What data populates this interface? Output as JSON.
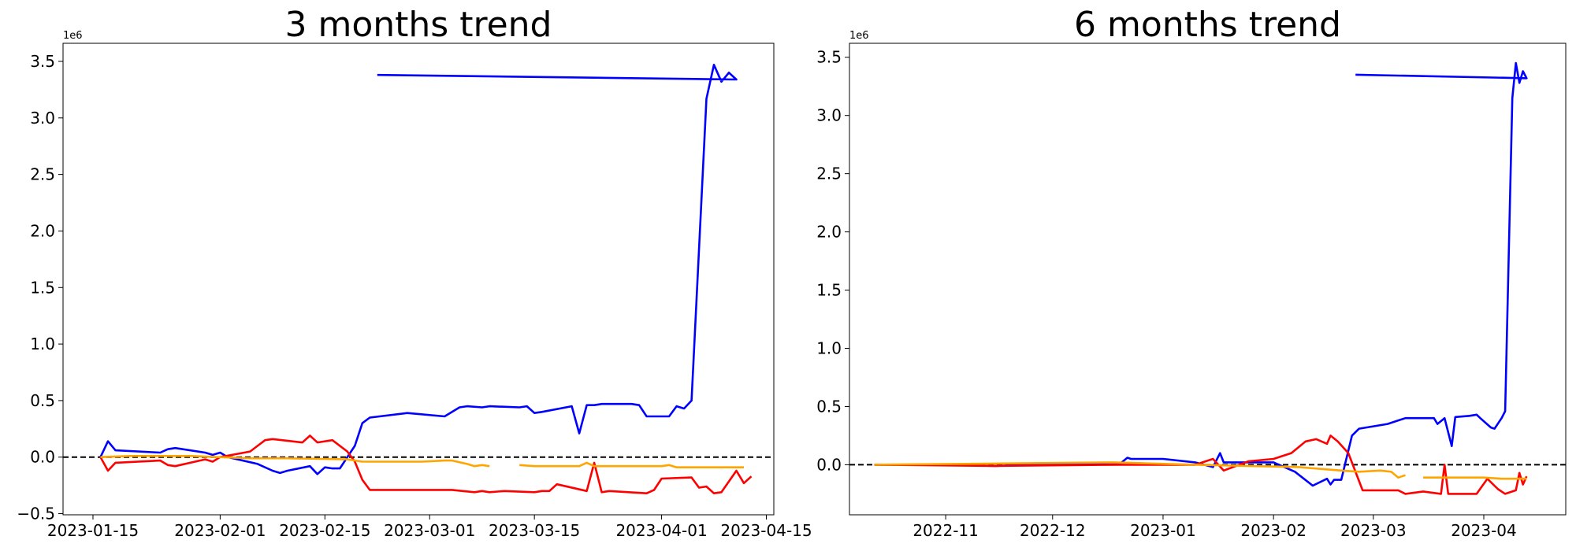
{
  "chart_data": [
    {
      "type": "line",
      "title": "3 months trend",
      "offset_label": "1e6",
      "xlim": [
        "2023-01-11",
        "2023-04-16"
      ],
      "xticks": [
        "2023-01-15",
        "2023-02-01",
        "2023-02-15",
        "2023-03-01",
        "2023-03-15",
        "2023-04-01",
        "2023-04-15"
      ],
      "ylim": [
        -0.51,
        3.66
      ],
      "yticks": [
        {
          "value": -0.5,
          "label": "−0.5"
        },
        {
          "value": 0,
          "label": "0.0"
        },
        0.5,
        {
          "value": 1,
          "label": "1.0"
        },
        1.5,
        {
          "value": 2,
          "label": "2.0"
        },
        2.5,
        {
          "value": 3,
          "label": "3.0"
        },
        3.5
      ],
      "hline": 0,
      "series": [
        {
          "color": "#0000ff",
          "x": [
            "2023-01-16",
            "2023-01-17",
            "2023-01-18",
            "2023-01-24",
            "2023-01-25",
            "2023-01-26",
            "2023-01-30",
            "2023-01-31",
            "2023-02-01",
            "2023-02-02",
            "2023-02-06",
            "2023-02-08",
            "2023-02-09",
            "2023-02-10",
            "2023-02-13",
            "2023-02-14",
            "2023-02-15",
            "2023-02-16",
            "2023-02-17",
            "2023-02-19",
            "2023-02-20",
            "2023-02-21",
            "2023-02-26",
            "2023-03-03",
            "2023-03-05",
            "2023-03-06",
            "2023-03-08",
            "2023-03-09",
            "2023-03-13",
            "2023-03-14",
            "2023-03-15",
            "2023-03-16",
            "2023-03-20",
            "2023-03-21",
            "2023-03-22",
            "2023-03-23",
            "2023-03-24",
            "2023-03-28",
            "2023-03-29",
            "2023-03-30",
            "2023-04-02",
            "2023-04-03",
            "2023-04-04",
            "2023-04-05",
            "2023-04-07",
            "2023-04-08",
            "2023-04-09",
            "2023-04-10",
            "2023-04-11",
            "2023-02-22"
          ],
          "values": [
            0.0,
            0.14,
            0.06,
            0.04,
            0.07,
            0.08,
            0.04,
            0.02,
            0.04,
            0.0,
            -0.06,
            -0.12,
            -0.14,
            -0.12,
            -0.08,
            -0.15,
            -0.09,
            -0.1,
            -0.1,
            0.1,
            0.3,
            0.35,
            0.39,
            0.36,
            0.44,
            0.45,
            0.44,
            0.45,
            0.44,
            0.45,
            0.39,
            0.4,
            0.45,
            0.21,
            0.46,
            0.46,
            0.47,
            0.47,
            0.46,
            0.36,
            0.36,
            0.45,
            0.43,
            0.5,
            3.17,
            3.47,
            3.32,
            3.4,
            3.34,
            3.38
          ]
        },
        {
          "color": "#ff0000",
          "x": [
            "2023-01-16",
            "2023-01-17",
            "2023-01-18",
            "2023-01-24",
            "2023-01-25",
            "2023-01-26",
            "2023-01-30",
            "2023-01-31",
            "2023-02-01",
            "2023-02-05",
            "2023-02-06",
            "2023-02-07",
            "2023-02-08",
            "2023-02-12",
            "2023-02-13",
            "2023-02-14",
            "2023-02-16",
            "2023-02-18",
            "2023-02-19",
            "2023-02-20",
            "2023-02-21",
            "2023-03-04",
            "2023-03-07",
            "2023-03-08",
            "2023-03-09",
            "2023-03-11",
            "2023-03-15",
            "2023-03-16",
            "2023-03-17",
            "2023-03-18",
            "2023-03-22",
            "2023-03-23",
            "2023-03-24",
            "2023-03-25",
            "2023-03-30",
            "2023-03-31",
            "2023-04-01",
            "2023-04-05",
            "2023-04-06",
            "2023-04-07",
            "2023-04-08",
            "2023-04-09",
            "2023-04-11",
            "2023-04-12",
            "2023-04-13"
          ],
          "values": [
            0.0,
            -0.12,
            -0.05,
            -0.03,
            -0.07,
            -0.08,
            -0.02,
            -0.04,
            0.0,
            0.05,
            0.1,
            0.15,
            0.16,
            0.13,
            0.19,
            0.13,
            0.15,
            0.05,
            -0.04,
            -0.2,
            -0.29,
            -0.29,
            -0.31,
            -0.3,
            -0.31,
            -0.3,
            -0.31,
            -0.3,
            -0.3,
            -0.24,
            -0.3,
            -0.05,
            -0.31,
            -0.3,
            -0.32,
            -0.29,
            -0.19,
            -0.18,
            -0.27,
            -0.26,
            -0.32,
            -0.31,
            -0.12,
            -0.23,
            -0.17
          ]
        },
        {
          "color": "#ffa500",
          "x": [
            "2023-01-16",
            "2023-01-20",
            "2023-01-28",
            "2023-02-05",
            "2023-02-10",
            "2023-02-18",
            "2023-02-20",
            "2023-02-28",
            "2023-03-03",
            "2023-03-04",
            "2023-03-06",
            "2023-03-07",
            "2023-03-08",
            "2023-03-09",
            "2023-03-11",
            "2023-03-13",
            "2023-03-15",
            "2023-03-21",
            "2023-03-22",
            "2023-03-23",
            "2023-04-01",
            "2023-04-02",
            "2023-04-03",
            "2023-04-12"
          ],
          "values": [
            0.0,
            0.01,
            0.01,
            -0.01,
            -0.01,
            -0.02,
            -0.04,
            -0.04,
            -0.03,
            -0.03,
            -0.06,
            -0.08,
            -0.07,
            -0.08,
            null,
            -0.07,
            -0.08,
            -0.08,
            -0.05,
            -0.08,
            -0.08,
            -0.07,
            -0.09,
            -0.09
          ]
        }
      ]
    },
    {
      "type": "line",
      "title": "6 months trend",
      "offset_label": "1e6",
      "xlim": [
        "2022-10-05",
        "2023-04-24"
      ],
      "xticks": [
        {
          "value": "2022-11-01",
          "label": "2022-11"
        },
        {
          "value": "2022-12-01",
          "label": "2022-12"
        },
        {
          "value": "2023-01-01",
          "label": "2023-01"
        },
        {
          "value": "2023-02-01",
          "label": "2023-02"
        },
        {
          "value": "2023-03-01",
          "label": "2023-03"
        },
        {
          "value": "2023-04-01",
          "label": "2023-04"
        }
      ],
      "ylim": [
        -0.43,
        3.62
      ],
      "yticks": [
        {
          "value": 0,
          "label": "0.0"
        },
        0.5,
        {
          "value": 1,
          "label": "1.0"
        },
        1.5,
        {
          "value": 2,
          "label": "2.0"
        },
        2.5,
        {
          "value": 3,
          "label": "3.0"
        },
        3.5
      ],
      "hline": 0,
      "series": [
        {
          "color": "#0000ff",
          "x": [
            "2022-10-12",
            "2022-11-01",
            "2022-11-15",
            "2022-12-01",
            "2022-12-20",
            "2022-12-22",
            "2022-12-23",
            "2023-01-01",
            "2023-01-10",
            "2023-01-15",
            "2023-01-17",
            "2023-01-18",
            "2023-01-25",
            "2023-02-01",
            "2023-02-07",
            "2023-02-12",
            "2023-02-16",
            "2023-02-17",
            "2023-02-18",
            "2023-02-20",
            "2023-02-23",
            "2023-02-25",
            "2023-03-05",
            "2023-03-10",
            "2023-03-14",
            "2023-03-18",
            "2023-03-19",
            "2023-03-21",
            "2023-03-23",
            "2023-03-24",
            "2023-03-28",
            "2023-03-30",
            "2023-03-31",
            "2023-04-03",
            "2023-04-04",
            "2023-04-06",
            "2023-04-07",
            "2023-04-09",
            "2023-04-10",
            "2023-04-11",
            "2023-04-12",
            "2023-04-13",
            "2023-02-24"
          ],
          "values": [
            0.0,
            0.0,
            -0.01,
            0.01,
            0.01,
            0.06,
            0.05,
            0.05,
            0.02,
            -0.02,
            0.1,
            0.02,
            0.02,
            0.02,
            -0.06,
            -0.18,
            -0.12,
            -0.17,
            -0.13,
            -0.13,
            0.25,
            0.31,
            0.35,
            0.4,
            0.4,
            0.4,
            0.35,
            0.4,
            0.16,
            0.41,
            0.42,
            0.43,
            0.4,
            0.32,
            0.31,
            0.4,
            0.46,
            3.15,
            3.45,
            3.28,
            3.38,
            3.32,
            3.35
          ]
        },
        {
          "color": "#ff0000",
          "x": [
            "2022-10-12",
            "2022-11-15",
            "2022-12-20",
            "2023-01-10",
            "2023-01-15",
            "2023-01-18",
            "2023-01-25",
            "2023-02-01",
            "2023-02-06",
            "2023-02-10",
            "2023-02-13",
            "2023-02-16",
            "2023-02-17",
            "2023-02-19",
            "2023-02-22",
            "2023-02-26",
            "2023-03-08",
            "2023-03-10",
            "2023-03-15",
            "2023-03-20",
            "2023-03-21",
            "2023-03-22",
            "2023-03-30",
            "2023-04-02",
            "2023-04-05",
            "2023-04-07",
            "2023-04-10",
            "2023-04-11",
            "2023-04-12",
            "2023-04-13"
          ],
          "values": [
            0.0,
            -0.01,
            0.0,
            0.0,
            0.05,
            -0.05,
            0.03,
            0.05,
            0.1,
            0.2,
            0.22,
            0.18,
            0.25,
            0.2,
            0.1,
            -0.22,
            -0.22,
            -0.25,
            -0.23,
            -0.25,
            0.0,
            -0.25,
            -0.25,
            -0.12,
            -0.21,
            -0.25,
            -0.22,
            -0.07,
            -0.17,
            -0.1
          ]
        },
        {
          "color": "#ffa500",
          "x": [
            "2022-10-12",
            "2022-11-15",
            "2022-12-18",
            "2023-01-10",
            "2023-02-08",
            "2023-02-20",
            "2023-02-25",
            "2023-03-03",
            "2023-03-06",
            "2023-03-08",
            "2023-03-10",
            "2023-03-12",
            "2023-03-15",
            "2023-03-25",
            "2023-04-01",
            "2023-04-06",
            "2023-04-13"
          ],
          "values": [
            0.0,
            0.01,
            0.02,
            0.0,
            -0.02,
            -0.05,
            -0.06,
            -0.05,
            -0.06,
            -0.11,
            -0.09,
            null,
            -0.11,
            -0.11,
            -0.11,
            -0.12,
            -0.12
          ]
        }
      ]
    }
  ]
}
